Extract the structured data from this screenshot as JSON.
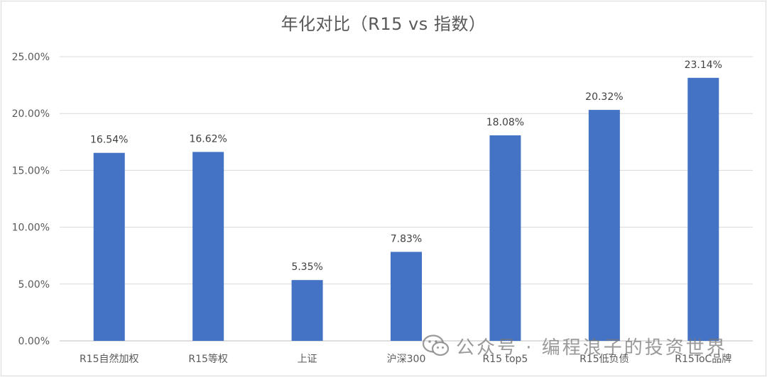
{
  "chart_data": {
    "type": "bar",
    "title": "年化对比（R15 vs 指数）",
    "categories": [
      "R15自然加权",
      "R15等权",
      "上证",
      "沪深300",
      "R15 top5",
      "R15低负债",
      "R15ToC品牌"
    ],
    "values": [
      16.54,
      16.62,
      5.35,
      7.83,
      18.08,
      20.32,
      23.14
    ],
    "data_labels": [
      "16.54%",
      "16.62%",
      "5.35%",
      "7.83%",
      "18.08%",
      "20.32%",
      "23.14%"
    ],
    "ylim": [
      0,
      25
    ],
    "yticks": [
      "0.00%",
      "5.00%",
      "10.00%",
      "15.00%",
      "20.00%",
      "25.00%"
    ],
    "xlabel": "",
    "ylabel": "",
    "grid": true,
    "bar_color": "#4472C4"
  },
  "watermark": {
    "icon": "wechat-icon",
    "text": "公众号 · 编程浪子的投资世界"
  }
}
